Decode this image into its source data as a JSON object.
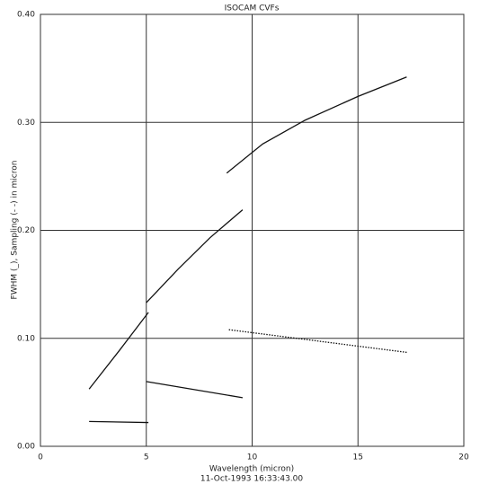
{
  "chart_data": {
    "type": "line",
    "title": "ISOCAM CVFs",
    "x_label": "Wavelength (micron)",
    "subtitle": "11-Oct-1993 16:33:43.00",
    "y_label": "FWHM (_), Sampling (- -) in micron",
    "xlim": [
      0,
      20
    ],
    "xticks": [
      0,
      5,
      10,
      15,
      20
    ],
    "ylim": [
      0,
      0.4
    ],
    "yticks": [
      {
        "value": 0,
        "label": "0.00"
      },
      {
        "value": 0.1,
        "label": "0.10"
      },
      {
        "value": 0.2,
        "label": "0.20"
      },
      {
        "value": 0.3,
        "label": "0.30"
      },
      {
        "value": 0.4,
        "label": "0.40"
      }
    ],
    "grid": true,
    "series": [
      {
        "color": "#111111",
        "line_style": "solid",
        "x": [
          2.3,
          3.7,
          5.1
        ],
        "values": [
          0.053,
          0.088,
          0.124
        ]
      },
      {
        "color": "#111111",
        "line_style": "solid",
        "x": [
          5.0,
          6.5,
          8.0,
          9.55
        ],
        "values": [
          0.133,
          0.164,
          0.193,
          0.219
        ]
      },
      {
        "color": "#111111",
        "line_style": "solid",
        "x": [
          8.8,
          10.5,
          12.5,
          15.0,
          17.3
        ],
        "values": [
          0.253,
          0.28,
          0.302,
          0.324,
          0.342
        ]
      },
      {
        "color": "#111111",
        "line_style": "dotted",
        "x": [
          8.9,
          17.3
        ],
        "values": [
          0.108,
          0.087
        ]
      },
      {
        "color": "#111111",
        "line_style": "solid",
        "x": [
          5.0,
          9.55
        ],
        "values": [
          0.06,
          0.045
        ]
      },
      {
        "color": "#111111",
        "line_style": "solid",
        "x": [
          2.3,
          5.1
        ],
        "values": [
          0.023,
          0.022
        ]
      }
    ]
  }
}
